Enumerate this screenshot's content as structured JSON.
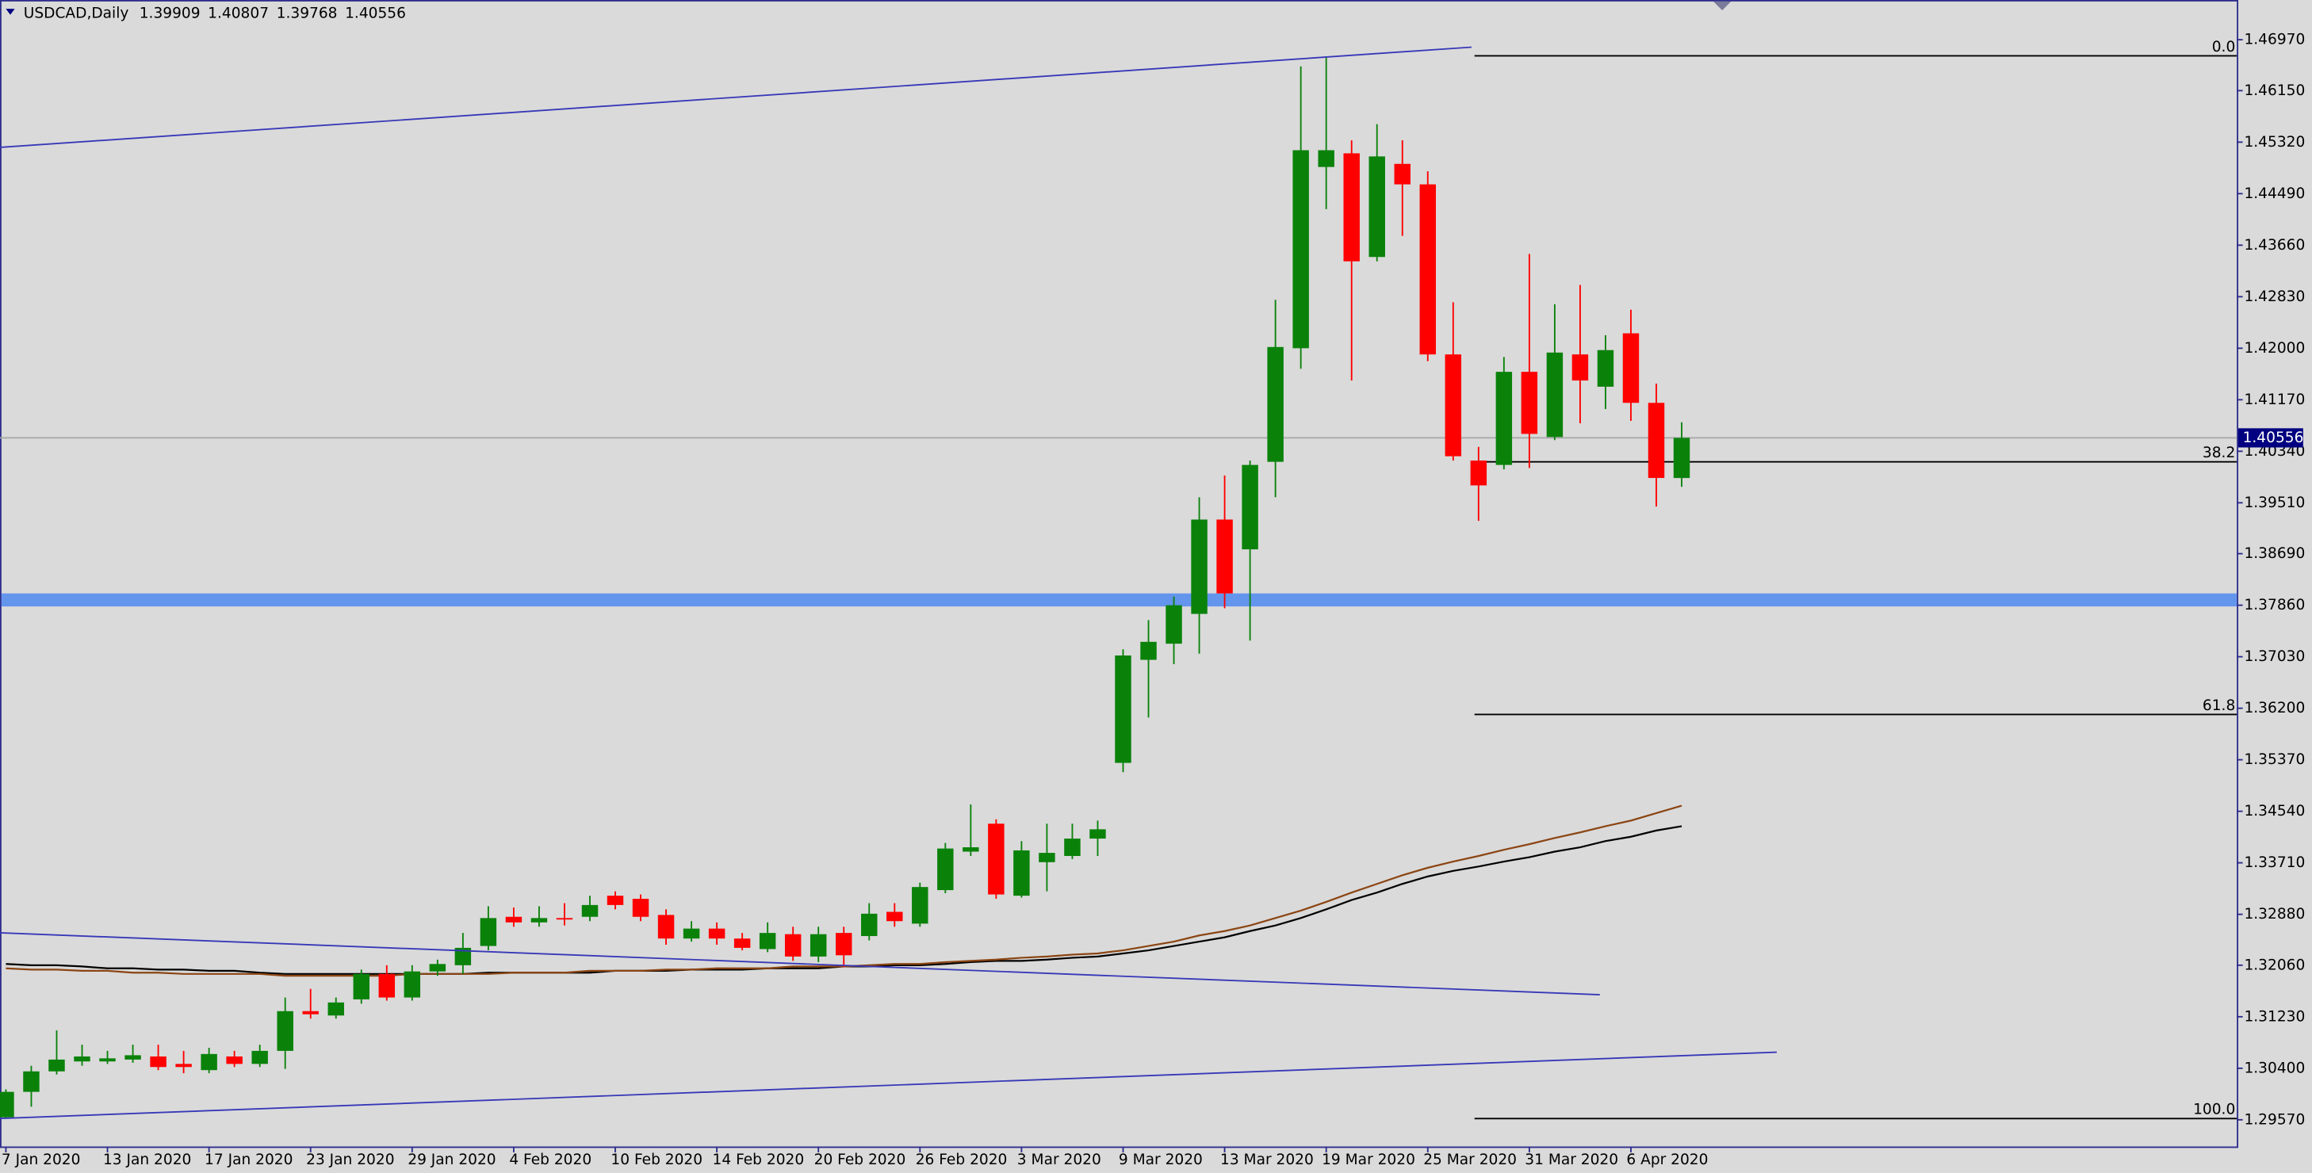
{
  "chart_data": {
    "type": "candlestick",
    "title": "USDCAD,Daily",
    "categories": [
      "7 Jan 2020",
      null,
      null,
      null,
      "13 Jan 2020",
      null,
      null,
      null,
      "17 Jan 2020",
      null,
      null,
      null,
      "23 Jan 2020",
      null,
      null,
      null,
      "29 Jan 2020",
      null,
      null,
      null,
      "4 Feb 2020",
      null,
      null,
      null,
      "10 Feb 2020",
      null,
      null,
      null,
      "14 Feb 2020",
      null,
      null,
      null,
      "20 Feb 2020",
      null,
      null,
      null,
      "26 Feb 2020",
      null,
      null,
      null,
      "3 Mar 2020",
      null,
      null,
      null,
      "9 Mar 2020",
      null,
      null,
      null,
      "13 Mar 2020",
      null,
      null,
      null,
      "19 Mar 2020",
      null,
      null,
      null,
      "25 Mar 2020",
      null,
      null,
      null,
      "31 Mar 2020",
      null,
      null,
      null,
      "6 Apr 2020",
      null,
      null
    ],
    "open": [
      1.2961,
      1.3002,
      1.3035,
      1.3051,
      1.3051,
      1.3054,
      1.3059,
      1.3047,
      1.3037,
      1.3059,
      1.3047,
      1.3068,
      1.3132,
      1.3125,
      1.3151,
      1.3192,
      1.3154,
      1.3196,
      1.3206,
      1.3237,
      1.3284,
      1.3275,
      1.3282,
      1.3284,
      1.3318,
      1.3313,
      1.3287,
      1.3249,
      1.3265,
      1.3249,
      1.3232,
      1.3256,
      1.322,
      1.3258,
      1.3253,
      1.3292,
      1.3273,
      1.3327,
      1.3389,
      1.3434,
      1.3318,
      1.3372,
      1.3382,
      1.341,
      1.3532,
      1.3698,
      1.3724,
      1.3772,
      1.3924,
      1.3876,
      1.4017,
      1.42,
      1.4492,
      1.4514,
      1.4347,
      1.4497,
      1.4464,
      1.419,
      1.4019,
      1.4012,
      1.4162,
      1.4057,
      1.419,
      1.4138,
      1.4224,
      1.4112,
      1.39909
    ],
    "high": [
      1.3006,
      1.3044,
      1.3101,
      1.3078,
      1.3068,
      1.3078,
      1.3078,
      1.3068,
      1.3073,
      1.3068,
      1.3078,
      1.3154,
      1.3168,
      1.3154,
      1.3199,
      1.3206,
      1.3206,
      1.3215,
      1.3258,
      1.3301,
      1.3299,
      1.3301,
      1.3306,
      1.3318,
      1.3325,
      1.332,
      1.3296,
      1.3277,
      1.3275,
      1.3258,
      1.3275,
      1.3268,
      1.3268,
      1.3268,
      1.3306,
      1.3306,
      1.3339,
      1.3403,
      1.3465,
      1.3441,
      1.3406,
      1.3434,
      1.3434,
      1.3439,
      1.3715,
      1.3762,
      1.38,
      1.396,
      1.3995,
      1.4019,
      1.4278,
      1.4654,
      1.4668,
      1.4535,
      1.4561,
      1.4535,
      1.4485,
      1.4274,
      1.4041,
      1.4186,
      1.4352,
      1.4271,
      1.4302,
      1.4221,
      1.4262,
      1.4143,
      1.40807
    ],
    "low": [
      1.2959,
      1.2978,
      1.303,
      1.3044,
      1.3047,
      1.3049,
      1.3037,
      1.3032,
      1.3032,
      1.3042,
      1.3042,
      1.3039,
      1.312,
      1.312,
      1.3144,
      1.3149,
      1.3149,
      1.3189,
      1.3192,
      1.323,
      1.3268,
      1.3268,
      1.327,
      1.3277,
      1.3296,
      1.3277,
      1.3239,
      1.3244,
      1.3239,
      1.323,
      1.3227,
      1.3213,
      1.3211,
      1.3203,
      1.3246,
      1.3268,
      1.3268,
      1.3322,
      1.3382,
      1.3313,
      1.3315,
      1.3325,
      1.3377,
      1.3382,
      1.3517,
      1.3605,
      1.3691,
      1.3708,
      1.3781,
      1.3729,
      1.396,
      1.4167,
      1.4424,
      1.4148,
      1.434,
      1.4381,
      1.4179,
      1.4019,
      1.3922,
      1.4005,
      1.4007,
      1.4052,
      1.4079,
      1.4102,
      1.4083,
      1.3945,
      1.39768
    ],
    "close": [
      1.3002,
      1.3035,
      1.3054,
      1.3059,
      1.3056,
      1.3061,
      1.3042,
      1.3042,
      1.3063,
      1.3047,
      1.3068,
      1.3132,
      1.3127,
      1.3146,
      1.3192,
      1.3154,
      1.3196,
      1.3208,
      1.3234,
      1.3282,
      1.3275,
      1.3282,
      1.328,
      1.3303,
      1.3303,
      1.3284,
      1.3249,
      1.3265,
      1.3249,
      1.3234,
      1.3258,
      1.322,
      1.3256,
      1.3222,
      1.3289,
      1.3277,
      1.3332,
      1.3394,
      1.3396,
      1.332,
      1.3391,
      1.3387,
      1.341,
      1.3425,
      1.3705,
      1.3727,
      1.3786,
      1.3924,
      1.3805,
      1.4012,
      1.4202,
      1.4519,
      1.4519,
      1.434,
      1.4509,
      1.4464,
      1.419,
      1.4026,
      1.3979,
      1.4162,
      1.4062,
      1.4193,
      1.4148,
      1.4197,
      1.4112,
      1.3991,
      1.40556
    ],
    "colors": {
      "up": "#0a820a",
      "down": "#ff0000"
    },
    "series": [
      {
        "color": "#000000",
        "values": [
          1.3208,
          1.3206,
          1.3206,
          1.3204,
          1.3201,
          1.3201,
          1.3199,
          1.3199,
          1.3197,
          1.3197,
          1.3194,
          1.3192,
          1.3192,
          1.3192,
          1.3192,
          1.3192,
          1.3192,
          1.3192,
          1.3192,
          1.3194,
          1.3194,
          1.3194,
          1.3194,
          1.3194,
          1.3197,
          1.3197,
          1.3197,
          1.3199,
          1.3199,
          1.3199,
          1.3201,
          1.3201,
          1.3201,
          1.3204,
          1.3204,
          1.3206,
          1.3206,
          1.3208,
          1.3211,
          1.3213,
          1.3213,
          1.3215,
          1.3218,
          1.322,
          1.3225,
          1.323,
          1.3237,
          1.3244,
          1.3251,
          1.3261,
          1.327,
          1.3282,
          1.3296,
          1.3311,
          1.3323,
          1.3337,
          1.3349,
          1.3358,
          1.3365,
          1.3373,
          1.338,
          1.3389,
          1.3396,
          1.3406,
          1.3413,
          1.3423,
          1.343
        ]
      },
      {
        "color": "#8b4513",
        "values": [
          1.3201,
          1.3199,
          1.3199,
          1.3197,
          1.3197,
          1.3194,
          1.3194,
          1.3192,
          1.3192,
          1.3192,
          1.3192,
          1.3189,
          1.3189,
          1.3189,
          1.3189,
          1.3189,
          1.3192,
          1.3192,
          1.3192,
          1.3192,
          1.3194,
          1.3194,
          1.3194,
          1.3197,
          1.3197,
          1.3197,
          1.3199,
          1.3199,
          1.3201,
          1.3201,
          1.3201,
          1.3204,
          1.3204,
          1.3204,
          1.3206,
          1.3208,
          1.3208,
          1.3211,
          1.3213,
          1.3215,
          1.3218,
          1.322,
          1.3223,
          1.3225,
          1.323,
          1.3237,
          1.3244,
          1.3254,
          1.3261,
          1.327,
          1.3282,
          1.3294,
          1.3308,
          1.3323,
          1.3337,
          1.3351,
          1.3363,
          1.3373,
          1.3382,
          1.3392,
          1.3401,
          1.3411,
          1.342,
          1.343,
          1.3439,
          1.3451,
          1.3463
        ]
      }
    ],
    "ylim": [
      1.2914,
      1.4761
    ],
    "yticks": [
      {
        "value": 1.4697,
        "label": "1.46970"
      },
      {
        "value": 1.4615,
        "label": "1.46150"
      },
      {
        "value": 1.4532,
        "label": "1.45320"
      },
      {
        "value": 1.4449,
        "label": "1.44490"
      },
      {
        "value": 1.4366,
        "label": "1.43660"
      },
      {
        "value": 1.4283,
        "label": "1.42830"
      },
      {
        "value": 1.42,
        "label": "1.42000"
      },
      {
        "value": 1.4117,
        "label": "1.41170"
      },
      {
        "value": 1.4034,
        "label": "1.40340"
      },
      {
        "value": 1.3951,
        "label": "1.39510"
      },
      {
        "value": 1.3869,
        "label": "1.38690"
      },
      {
        "value": 1.3786,
        "label": "1.37860"
      },
      {
        "value": 1.3703,
        "label": "1.37030"
      },
      {
        "value": 1.362,
        "label": "1.36200"
      },
      {
        "value": 1.3537,
        "label": "1.35370"
      },
      {
        "value": 1.3454,
        "label": "1.34540"
      },
      {
        "value": 1.3371,
        "label": "1.33710"
      },
      {
        "value": 1.3288,
        "label": "1.32880"
      },
      {
        "value": 1.3206,
        "label": "1.32060"
      },
      {
        "value": 1.3123,
        "label": "1.31230"
      },
      {
        "value": 1.304,
        "label": "1.30400"
      },
      {
        "value": 1.2957,
        "label": "1.29570"
      }
    ],
    "current_price": 1.40556,
    "zone": [
      1.3784,
      1.3805
    ],
    "zone_color": "#6495ed",
    "fib_levels": [
      {
        "level": {
          "value": 0,
          "label": "0.0"
        },
        "price": 1.4671
      },
      {
        "level": 38.2,
        "price": 1.4017
      },
      {
        "level": 61.8,
        "price": 1.361
      },
      {
        "level": {
          "value": 100,
          "label": "100.0"
        },
        "price": 1.2959
      }
    ]
  }
}
